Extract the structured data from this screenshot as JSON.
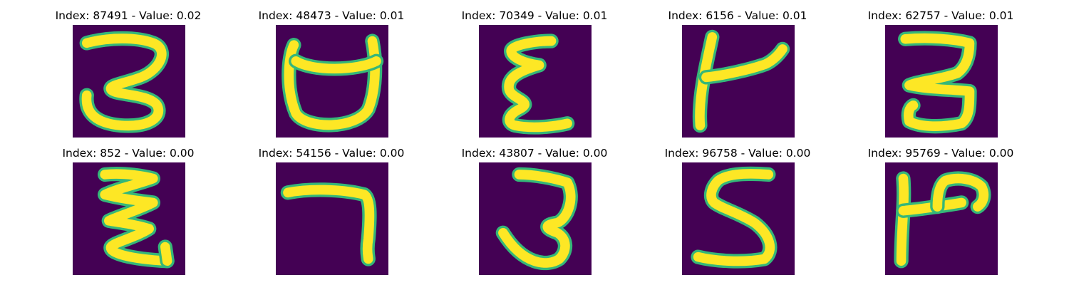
{
  "chart_data": {
    "type": "image-grid",
    "colormap": "viridis",
    "background_color": "#440154",
    "stroke_color": "#fde725",
    "edge_color": "#35b779",
    "items": [
      {
        "title": "Index: 87491 - Value: 0.02",
        "index": 87491,
        "value": 0.02,
        "glyph": "three-round"
      },
      {
        "title": "Index: 48473 - Value: 0.01",
        "index": 48473,
        "value": 0.01,
        "glyph": "cup-shape"
      },
      {
        "title": "Index: 70349 - Value: 0.01",
        "index": 70349,
        "value": 0.01,
        "glyph": "epsilon-shape"
      },
      {
        "title": "Index: 6156 - Value: 0.01",
        "index": 6156,
        "value": 0.01,
        "glyph": "k-shape"
      },
      {
        "title": "Index: 62757 - Value: 0.01",
        "index": 62757,
        "value": 0.01,
        "glyph": "three-flat"
      },
      {
        "title": "Index: 852 - Value: 0.00",
        "index": 852,
        "value": 0.0,
        "glyph": "zigzag-shape"
      },
      {
        "title": "Index: 54156 - Value: 0.00",
        "index": 54156,
        "value": 0.0,
        "glyph": "seven-shape"
      },
      {
        "title": "Index: 43807 - Value: 0.00",
        "index": 43807,
        "value": 0.0,
        "glyph": "three-thin"
      },
      {
        "title": "Index: 96758 - Value: 0.00",
        "index": 96758,
        "value": 0.0,
        "glyph": "five-shape"
      },
      {
        "title": "Index: 95769 - Value: 0.00",
        "index": 95769,
        "value": 0.0,
        "glyph": "p-shape"
      }
    ]
  }
}
